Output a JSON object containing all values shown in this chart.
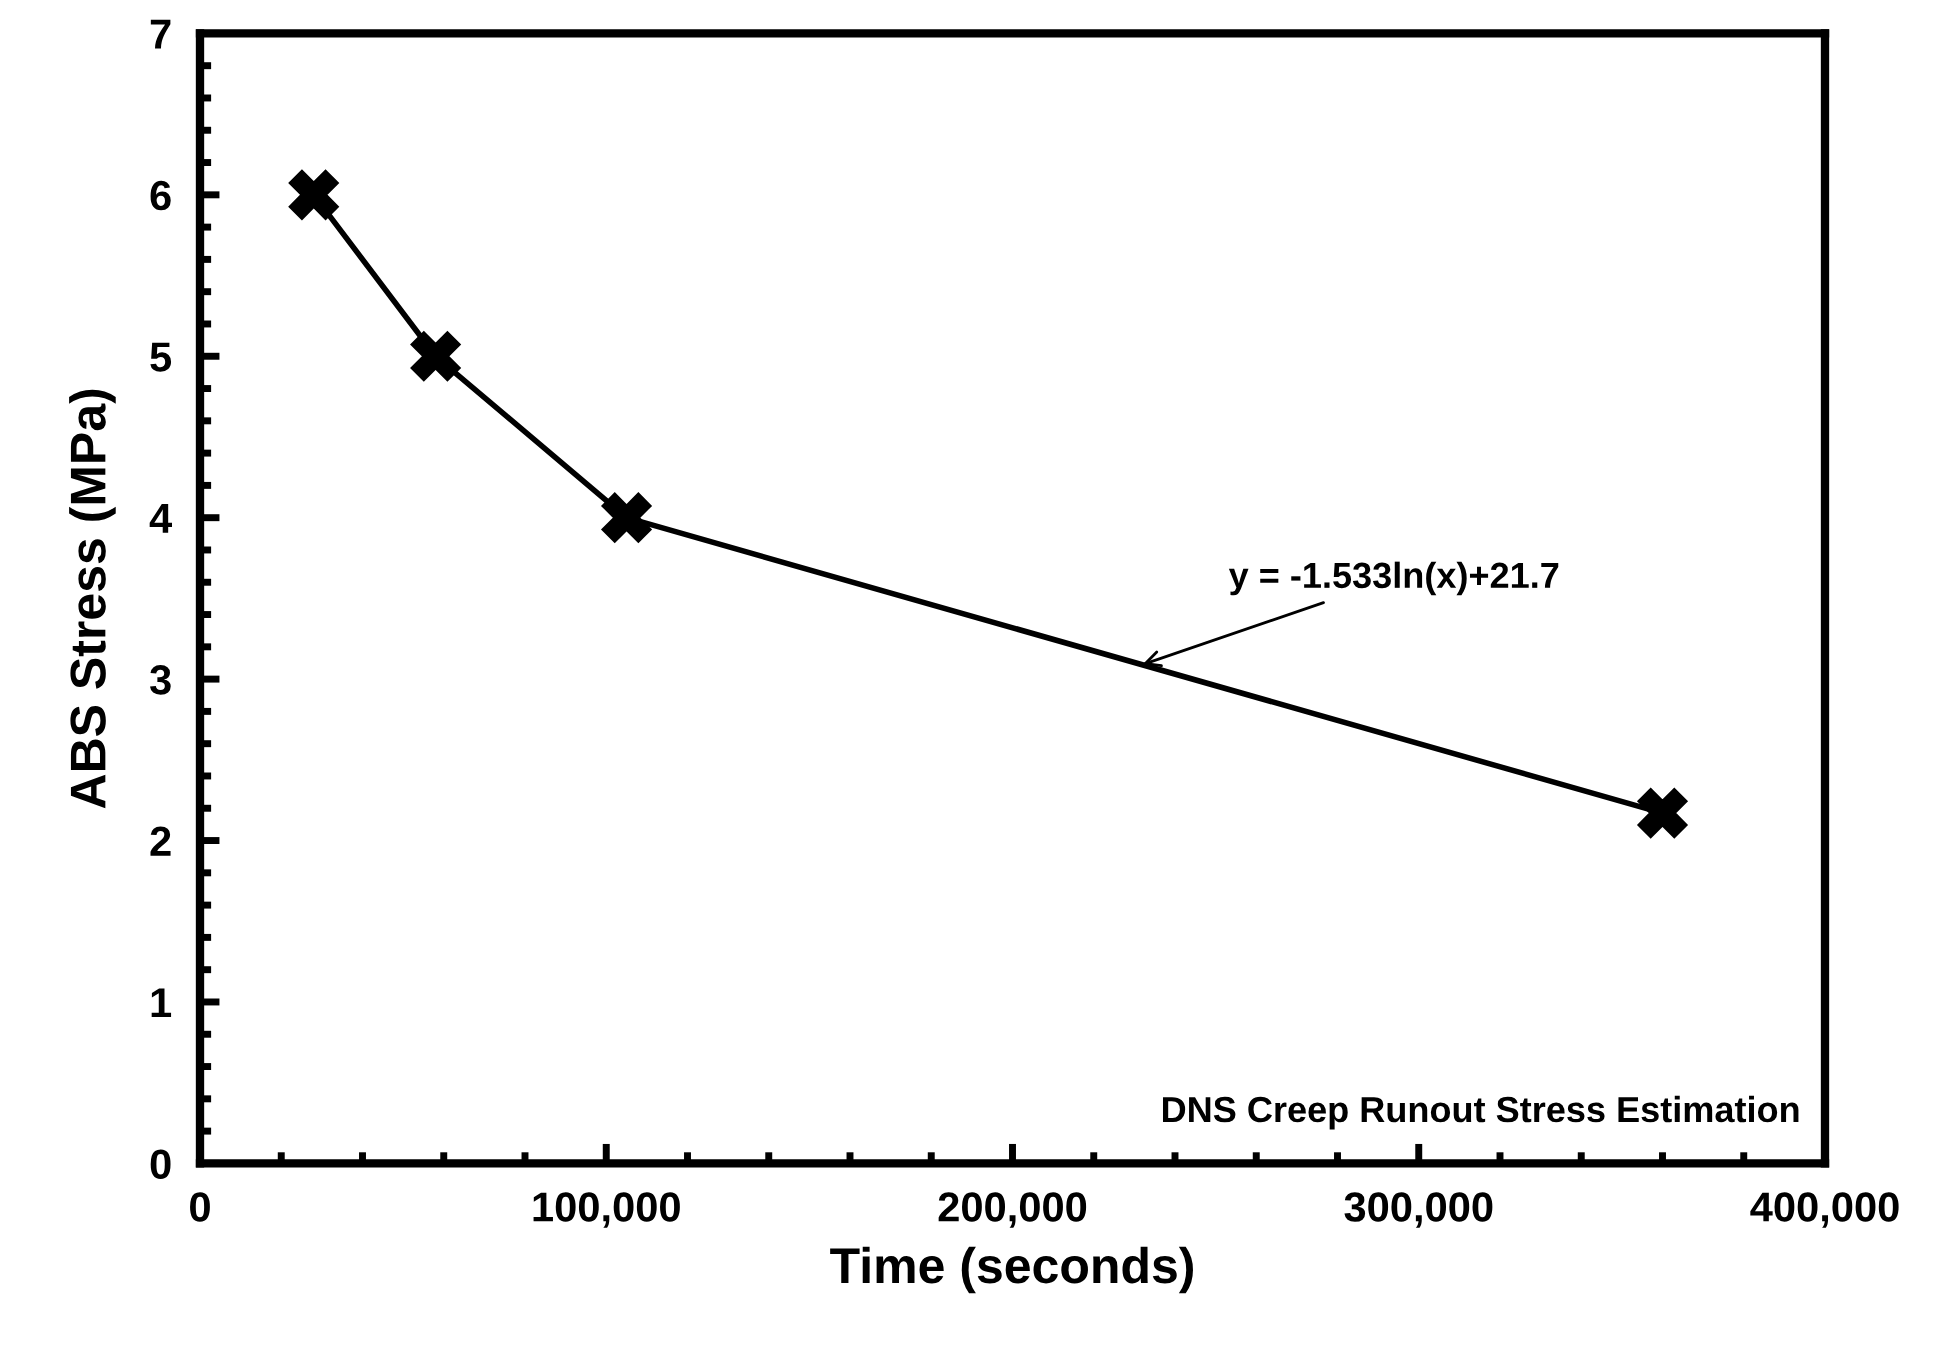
{
  "chart_data": {
    "type": "line",
    "xlabel": "Time (seconds)",
    "ylabel": "ABS Stress (MPa)",
    "x": [
      28000,
      58000,
      105000,
      360000
    ],
    "series": [
      {
        "color": "#000000",
        "values": [
          6.0,
          5.0,
          4.0,
          2.17
        ]
      }
    ],
    "marker": "cross",
    "line_style": "solid",
    "grid": false,
    "legend": false,
    "xlim": [
      0,
      400000
    ],
    "xticks": [
      {
        "value": 0,
        "label": "0"
      },
      {
        "value": 100000,
        "label": "100,000"
      },
      {
        "value": 200000,
        "label": "200,000"
      },
      {
        "value": 300000,
        "label": "300,000"
      },
      {
        "value": 400000,
        "label": "400,000"
      }
    ],
    "ylim": [
      0,
      7
    ],
    "yticks": [
      0,
      1,
      2,
      3,
      4,
      5,
      6,
      7
    ],
    "annotations": [
      {
        "text": "y = -1.533ln(x)+21.7",
        "x": 232000,
        "y": 3.09
      },
      "DNS Creep Runout Stress Estimation"
    ]
  }
}
